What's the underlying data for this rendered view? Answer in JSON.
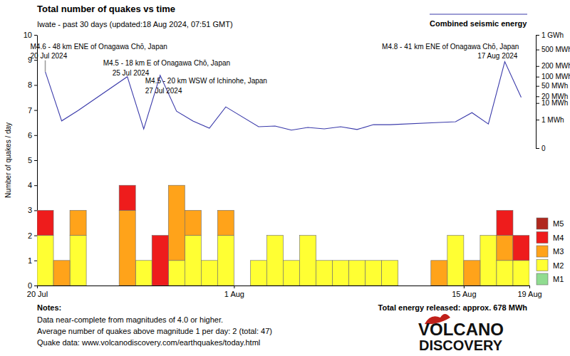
{
  "chart_data": {
    "type": "bar",
    "stacked": true,
    "title": "Total number of quakes vs time",
    "subtitle": "Iwate - past 30 days (updated:18 Aug 2024, 07:51 GMT)",
    "y_label": "Number of quakes / day",
    "x": [
      0,
      1,
      2,
      3,
      4,
      5,
      6,
      7,
      8,
      9,
      10,
      11,
      12,
      13,
      14,
      15,
      16,
      17,
      18,
      19,
      20,
      21,
      22,
      23,
      24,
      25,
      26,
      27,
      28,
      29
    ],
    "xlim": [
      0,
      30
    ],
    "xticks": [
      {
        "value": 0,
        "label": "20 Jul"
      },
      {
        "value": 12,
        "label": "1 Aug"
      },
      {
        "value": 26,
        "label": "15 Aug"
      },
      {
        "value": 30,
        "label": "19 Aug"
      }
    ],
    "ylim": [
      0,
      10
    ],
    "yticks": [
      0,
      1,
      2,
      3,
      4,
      5,
      6,
      7,
      8,
      9,
      10
    ],
    "y2lim": [
      0,
      1000
    ],
    "y2ticks": [
      0,
      {
        "value": 1,
        "label": "1 MWh"
      },
      {
        "value": 10,
        "label": "10 MWh"
      },
      {
        "value": 20,
        "label": "20 MWh"
      },
      {
        "value": 50,
        "label": "50 MWh"
      },
      {
        "value": 100,
        "label": "100 MWh"
      },
      {
        "value": 200,
        "label": "200 MWh"
      },
      {
        "value": 500,
        "label": "500 MWh"
      },
      {
        "value": 1000,
        "label": "1 GWh"
      }
    ],
    "legend": "right",
    "series": [
      {
        "name": "M1",
        "color": "#90dc90",
        "values": [
          0,
          0,
          0,
          0,
          0,
          0,
          0,
          0,
          0,
          0,
          0,
          0,
          0,
          0,
          0,
          0,
          0,
          0,
          0,
          0,
          0,
          0,
          0,
          0,
          0,
          0,
          0,
          0,
          0,
          0
        ]
      },
      {
        "name": "M2",
        "color": "#ffff33",
        "values": [
          2,
          0,
          2,
          0,
          0,
          0,
          1,
          0,
          1,
          2,
          1,
          2,
          0,
          1,
          2,
          1,
          2,
          1,
          1,
          1,
          1,
          1,
          0,
          0,
          0,
          2,
          0,
          2,
          1,
          1
        ]
      },
      {
        "name": "M3",
        "color": "#ffa31a",
        "values": [
          0,
          1,
          1,
          0,
          0,
          3,
          0,
          0,
          3,
          1,
          0,
          1,
          0,
          0,
          0,
          0,
          0,
          0,
          0,
          0,
          0,
          0,
          0,
          0,
          1,
          0,
          1,
          0,
          1,
          0
        ]
      },
      {
        "name": "M4",
        "color": "#ee1c1c",
        "values": [
          1,
          0,
          0,
          0,
          0,
          1,
          0,
          2,
          0,
          0,
          0,
          0,
          0,
          0,
          0,
          0,
          0,
          0,
          0,
          0,
          0,
          0,
          0,
          0,
          0,
          0,
          0,
          0,
          1,
          1
        ]
      },
      {
        "name": "M5",
        "color": "#b0281e",
        "values": [
          0,
          0,
          0,
          0,
          0,
          0,
          0,
          0,
          0,
          0,
          0,
          0,
          0,
          0,
          0,
          0,
          0,
          0,
          0,
          0,
          0,
          0,
          0,
          0,
          0,
          0,
          0,
          0,
          0,
          0
        ]
      },
      {
        "name": "Combined seismic energy",
        "type": "line",
        "axis": "y2",
        "color": "#3a3aaa",
        "x": [
          0,
          1,
          2,
          5,
          6,
          7,
          8,
          9,
          10,
          11,
          13,
          14,
          15,
          16,
          17,
          18,
          19,
          20,
          21,
          24,
          25,
          26,
          27,
          28,
          29
        ],
        "values": [
          140,
          0.8,
          4,
          100,
          0.14,
          110,
          3.7,
          0.77,
          0.17,
          6.4,
          0.24,
          0.28,
          0.1,
          0.2,
          0.14,
          0.24,
          0.12,
          0.38,
          0.38,
          0.6,
          0.68,
          3,
          0.44,
          260,
          18
        ]
      }
    ],
    "annotations": [
      {
        "text": "M4.6 - 48 km ENE of Onagawa Chō, Japan",
        "date": "20 Jul 2024",
        "x": 0
      },
      {
        "text": "M4.5 - 18 km E of Onagawa Chō, Japan",
        "date": "25 Jul 2024",
        "x": 5
      },
      {
        "text": "M4.5 - 20 km WSW of Ichinohe, Japan",
        "date": "27 Jul 2024",
        "x": 7
      },
      {
        "text": "M4.8 - 41 km ENE of Onagawa Chō, Japan",
        "date": "17 Aug 2024",
        "x": 28
      }
    ]
  },
  "notes": {
    "title": "Notes:",
    "lines": [
      "Data near-complete from magnitudes of 4.0 or higher.",
      "Average number of quakes above magnitude 1 per day: 2 (total: 47)",
      "Quake data: www.volcanodiscovery.com/earthquakes/today.html"
    ]
  },
  "total_energy": "Total energy released: approx. 678 MWh",
  "logo": [
    "VOLCANO",
    "DISCOVERY"
  ]
}
